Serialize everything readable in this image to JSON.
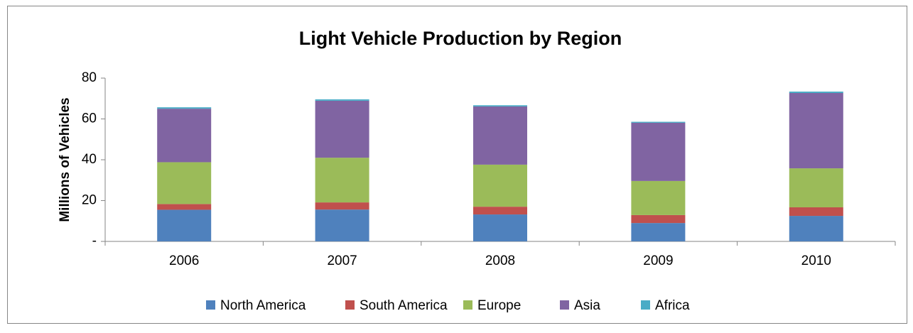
{
  "chart_data": {
    "type": "stacked-bar",
    "title": "Light Vehicle Production by Region",
    "y_label": "Millions of Vehicles",
    "categories": [
      "2006",
      "2007",
      "2008",
      "2009",
      "2010"
    ],
    "series": [
      {
        "name": "North America",
        "color": "#4f81bd",
        "values": [
          15.5,
          15.6,
          13.2,
          9.0,
          12.5
        ]
      },
      {
        "name": "South America",
        "color": "#c0504d",
        "values": [
          2.8,
          3.5,
          3.8,
          3.9,
          4.2
        ]
      },
      {
        "name": "Europe",
        "color": "#9bbb59",
        "values": [
          20.5,
          21.9,
          20.6,
          16.7,
          19.1
        ]
      },
      {
        "name": "Asia",
        "color": "#8064a2",
        "values": [
          26.2,
          27.9,
          28.5,
          28.5,
          36.9
        ]
      },
      {
        "name": "Africa",
        "color": "#4bacc6",
        "values": [
          0.7,
          0.7,
          0.6,
          0.5,
          0.7
        ]
      }
    ],
    "ylim": [
      0,
      80
    ],
    "yticks": [
      {
        "value": 0,
        "label": "-"
      },
      20,
      40,
      60,
      80
    ],
    "legend": "bottom"
  }
}
